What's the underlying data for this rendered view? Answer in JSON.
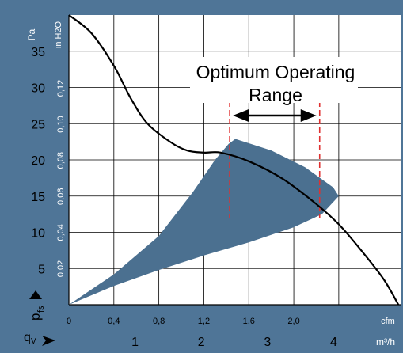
{
  "chart_data": {
    "type": "line",
    "title": "",
    "annotation": {
      "line1": "Optimum Operating",
      "line2": "Range"
    },
    "pressure_axis": {
      "unit_pa": "Pa",
      "unit_inh2o": "in H2O",
      "symbol": "p",
      "symbol_sub": "fs",
      "range_pa": [
        0,
        40
      ],
      "ticks_pa": [
        "5",
        "10",
        "15",
        "20",
        "25",
        "30",
        "35"
      ],
      "ticks_inh2o": [
        "0,02",
        "0,04",
        "0,06",
        "0,08",
        "0,10",
        "0,12"
      ]
    },
    "flow_axis": {
      "symbol": "q",
      "symbol_sub": "V",
      "unit_cfm": "cfm",
      "unit_m3h": "m³/h",
      "range_cfm": [
        0,
        2.95
      ],
      "ticks_cfm": [
        "0",
        "0,4",
        "0,8",
        "1,2",
        "1,6",
        "2,0"
      ],
      "ticks_m3h": [
        "1",
        "2",
        "3",
        "4"
      ]
    },
    "series": [
      {
        "type": "line",
        "x": [
          0,
          0.2,
          0.4,
          0.55,
          0.7,
          0.9,
          1.05,
          1.2,
          1.35,
          1.6,
          1.9,
          2.2,
          2.4,
          2.6,
          2.8,
          2.93
        ],
        "y": [
          40,
          37.5,
          33,
          28.5,
          25,
          22.5,
          21.3,
          21,
          21,
          19.8,
          17.4,
          13.9,
          11.1,
          7.5,
          3.5,
          0
        ]
      },
      {
        "type": "area",
        "upper_x": [
          0,
          0.4,
          0.8,
          1.1,
          1.3,
          1.42,
          1.48,
          1.8,
          2.1,
          2.35,
          2.4
        ],
        "upper_y": [
          0,
          4.2,
          9.5,
          15.5,
          20,
          22.2,
          22.9,
          21.3,
          19,
          16.2,
          15
        ],
        "lower_x": [
          2.4,
          2.25,
          2.0,
          1.6,
          1.2,
          0.8,
          0.4,
          0
        ],
        "lower_y": [
          15,
          12.5,
          10.7,
          8.6,
          6.8,
          4.8,
          2.6,
          0
        ]
      }
    ],
    "optimum_range_cfm": [
      1.43,
      2.23
    ],
    "grid": true,
    "colors": {
      "background": "#4f7597",
      "plot": "#ffffff",
      "grid": "#000000",
      "area": "#4b7090",
      "curve": "#000000",
      "range_lines": "#e03030"
    }
  }
}
